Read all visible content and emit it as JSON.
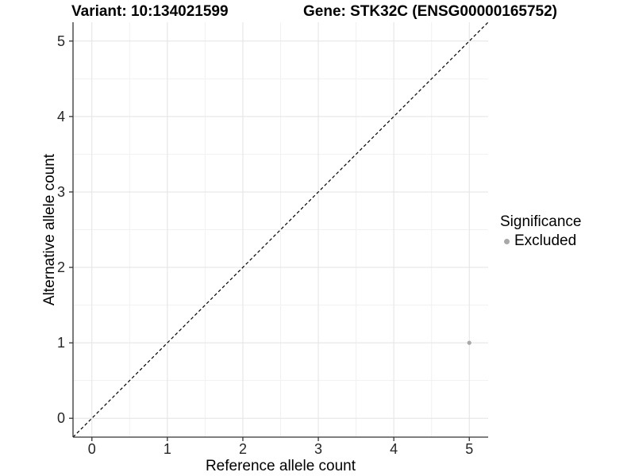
{
  "chart_data": {
    "type": "scatter",
    "title_left": "Variant: 10:134021599",
    "title_right": "Gene: STK32C (ENSG00000165752)",
    "xlabel": "Reference allele count",
    "ylabel": "Alternative allele count",
    "xlim": [
      -0.25,
      5.25
    ],
    "ylim": [
      -0.25,
      5.25
    ],
    "x_ticks": [
      0,
      1,
      2,
      3,
      4,
      5
    ],
    "y_ticks": [
      0,
      1,
      2,
      3,
      4,
      5
    ],
    "minor_gridlines": [
      0.5,
      1.5,
      2.5,
      3.5,
      4.5
    ],
    "grid": "major and minor gridlines on white panel",
    "points": [
      {
        "x": 5,
        "y": 1,
        "series": "Excluded"
      }
    ],
    "reference_line": {
      "kind": "identity y=x",
      "style": "dashed",
      "color": "#000000"
    },
    "legend": {
      "position": "right",
      "title": "Significance",
      "items": [
        {
          "label": "Excluded",
          "color": "#a8a8a8"
        }
      ]
    },
    "colors": {
      "background": "#ffffff",
      "grid_major": "#e3e3e3",
      "grid_minor": "#f1f1f1",
      "axis_line": "#333333",
      "tick_text": "#262626",
      "title_text": "#000000",
      "point": "#a8a8a8"
    }
  }
}
